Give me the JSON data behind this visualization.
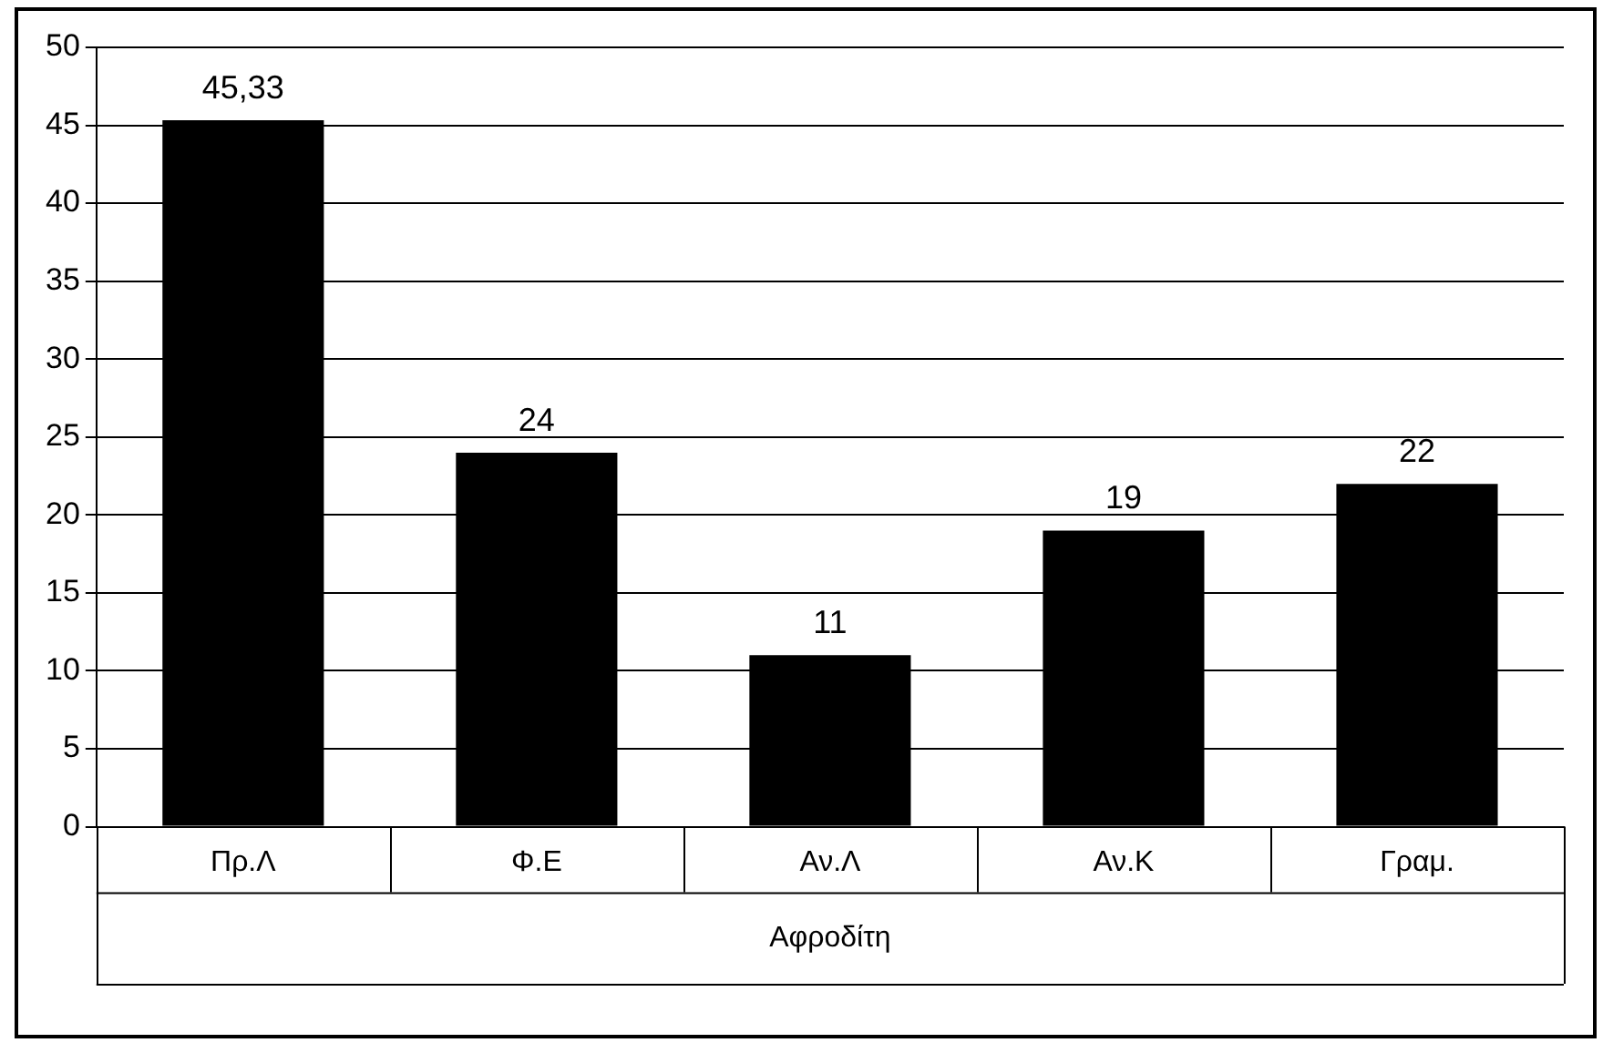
{
  "chart_data": {
    "type": "bar",
    "xlabel": "Αφροδίτη",
    "categories": [
      "Πρ.Λ",
      "Φ.Ε",
      "Αν.Λ",
      "Αν.Κ",
      "Γραμ."
    ],
    "values": [
      45.33,
      24,
      11,
      19,
      22
    ],
    "value_labels": [
      "45,33",
      "24",
      "11",
      "19",
      "22"
    ],
    "color": "#000000",
    "ylim": [
      0,
      50
    ],
    "yticks": [
      0,
      5,
      10,
      15,
      20,
      25,
      30,
      35,
      40,
      45,
      50
    ],
    "grid": "y",
    "legend": false
  }
}
